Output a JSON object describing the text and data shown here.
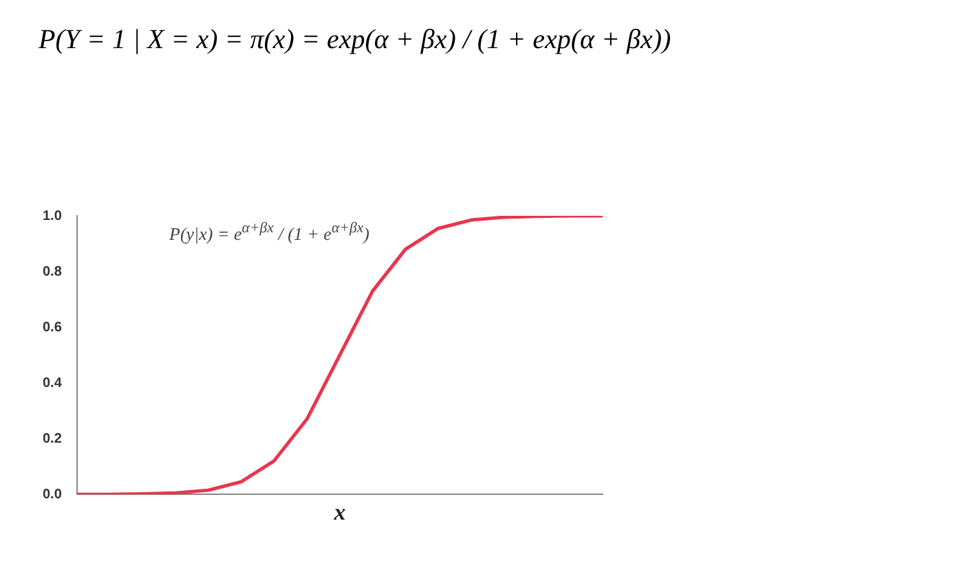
{
  "chart_data": {
    "type": "line",
    "title": "P(Y = 1 | X = x) = π(x) = exp(α + βx) / (1 + exp(α + βx))",
    "xlabel": "x",
    "annotations": [
      "P(y|x) = e$^{α+βx}$ / (1 + e$^{α+βx}$)"
    ],
    "categories": [
      null,
      null,
      null,
      null,
      null,
      null,
      null,
      null,
      null,
      null,
      null,
      null,
      null,
      null,
      null,
      null,
      null
    ],
    "series": [
      {
        "color": "#e8364f",
        "values": [
          0,
          0,
          0.002,
          0.005,
          0.015,
          0.045,
          0.12,
          0.27,
          0.5,
          0.73,
          0.88,
          0.955,
          0.985,
          0.995,
          0.998,
          1.0,
          1.0
        ]
      }
    ],
    "ylim": [
      0,
      1
    ],
    "yticks": [
      {
        "value": 0,
        "label": "0.0"
      },
      {
        "value": 0.2,
        "label": "0.2"
      },
      {
        "value": 0.4,
        "label": "0.4"
      },
      {
        "value": 0.6,
        "label": "0.6"
      },
      {
        "value": 0.8,
        "label": "0.8"
      },
      {
        "value": 1,
        "label": "1.0"
      }
    ],
    "grid": false,
    "legend": false,
    "marker": "none",
    "line_style": "solid",
    "tick_labels": "y"
  }
}
